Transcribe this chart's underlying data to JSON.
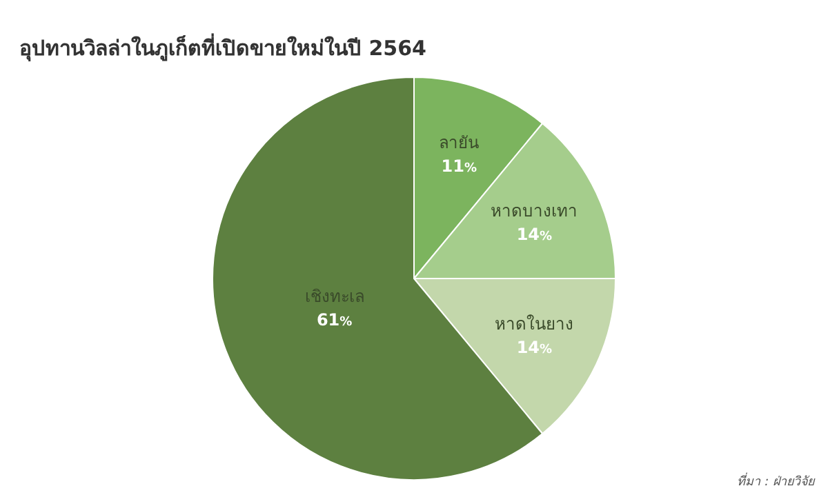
{
  "chart_data": {
    "type": "pie",
    "title": "อุปทานวิลล่าในภูเก็ตที่เปิดขายใหม่ในปี 2564",
    "categories": [
      "ลายัน",
      "หาดบางเทา",
      "หาดในยาง",
      "เชิงทะเล"
    ],
    "values": [
      11,
      14,
      14,
      61
    ],
    "colors": [
      "#7cb45e",
      "#a5cd8c",
      "#c3d7ab",
      "#5d8040"
    ],
    "value_labels": [
      "11%",
      "14%",
      "14%",
      "61%"
    ],
    "annotations": [
      "ที่มา : ฝ่ายวิจัย"
    ]
  }
}
